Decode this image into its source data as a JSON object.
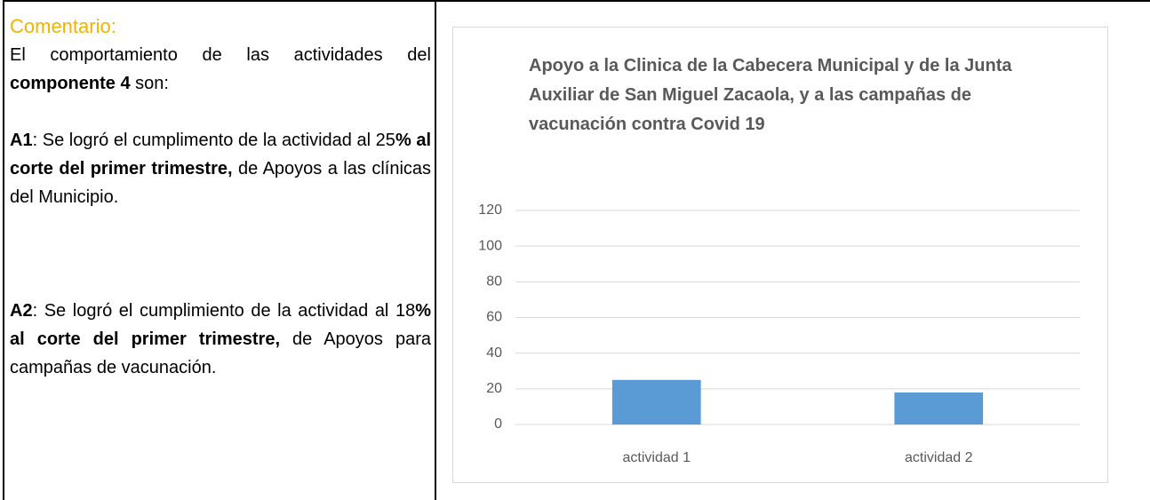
{
  "comment": {
    "label": "Comentario:",
    "paragraphs": [
      [
        {
          "text": "El comportamiento de las actividades del "
        },
        {
          "text": "componente 4",
          "bold": true
        },
        {
          "text": " son:"
        }
      ],
      [
        {
          "text": "A1",
          "bold": true
        },
        {
          "text": ": Se logró el cumplimento de la actividad al 25"
        },
        {
          "text": "% al corte del primer trimestre,",
          "bold": true
        },
        {
          "text": " de Apoyos a las clínicas del Municipio."
        }
      ],
      [
        {
          "text": "A2",
          "bold": true
        },
        {
          "text": ": Se logró el cumplimiento de la actividad al 18"
        },
        {
          "text": "% al corte del primer trimestre,",
          "bold": true
        },
        {
          "text": " de Apoyos para campañas de vacunación."
        }
      ]
    ]
  },
  "chart_data": {
    "type": "bar",
    "title": "Apoyo a la Clinica de la Cabecera Municipal y de la Junta Auxiliar de San Miguel Zacaola, y a las campañas de vacunación contra Covid 19",
    "categories": [
      "actividad 1",
      "actividad 2"
    ],
    "values": [
      25,
      18
    ],
    "color": "#5b9bd5",
    "ylim": [
      0,
      120
    ],
    "yticks": [
      0,
      20,
      40,
      60,
      80,
      100,
      120
    ],
    "grid": true
  }
}
